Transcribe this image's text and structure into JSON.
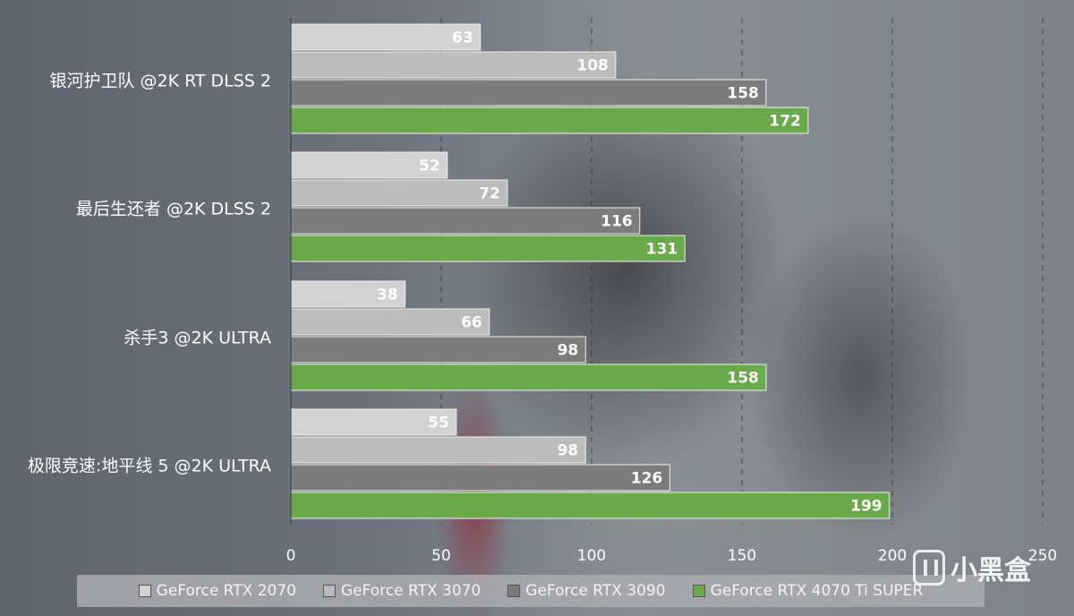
{
  "chart_data": {
    "type": "bar",
    "orientation": "horizontal",
    "categories": [
      "银河护卫队 @2K RT DLSS 2",
      "最后生还者 @2K DLSS 2",
      "杀手3 @2K ULTRA",
      "极限竞速:地平线 5 @2K ULTRA"
    ],
    "series": [
      {
        "name": "GeForce RTX 2070",
        "color": "#d2d2d2",
        "values": [
          63,
          52,
          38,
          55
        ]
      },
      {
        "name": "GeForce RTX 3070",
        "color": "#bcbcbc",
        "values": [
          108,
          72,
          66,
          98
        ]
      },
      {
        "name": "GeForce RTX 3090",
        "color": "#7c7c7c",
        "values": [
          158,
          116,
          98,
          126
        ]
      },
      {
        "name": "GeForce RTX 4070 Ti SUPER",
        "color": "#6aaa4b",
        "values": [
          172,
          131,
          158,
          199
        ]
      }
    ],
    "xlim": [
      0,
      250
    ],
    "xticks": [
      0,
      50,
      100,
      150,
      200,
      250
    ],
    "grid": true,
    "legend_position": "bottom",
    "data_labels": true
  },
  "watermark": {
    "text": "小黑盒",
    "icon": "heybox-logo-icon"
  }
}
